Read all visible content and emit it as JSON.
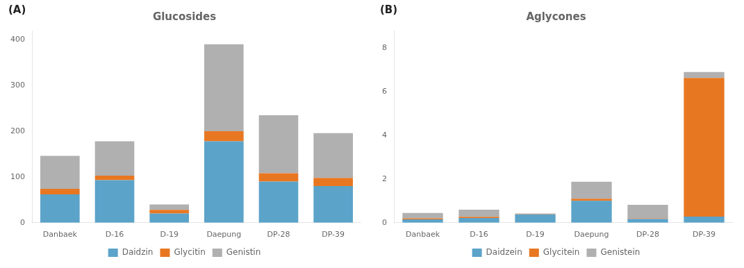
{
  "chart_data": [
    {
      "type": "bar",
      "title": "Glucosides",
      "annotations": [
        "(A)"
      ],
      "categories": [
        "Danbaek",
        "D-16",
        "D-19",
        "Daepung",
        "DP-28",
        "DP-39"
      ],
      "series": [
        {
          "name": "Daidzin",
          "color": "#5BA3C9",
          "values": [
            62,
            93,
            20,
            178,
            90,
            80
          ]
        },
        {
          "name": "Glycitin",
          "color": "#E87722",
          "values": [
            12,
            10,
            8,
            22,
            18,
            18
          ]
        },
        {
          "name": "Genistin",
          "color": "#B0B0B0",
          "values": [
            72,
            75,
            12,
            190,
            127,
            98
          ]
        }
      ],
      "ylim": [
        0,
        420
      ],
      "yticks": [
        0,
        100,
        200,
        300,
        400
      ],
      "stacked": true,
      "grid": false,
      "legend": "bottom"
    },
    {
      "type": "bar",
      "title": "Aglycones",
      "annotations": [
        "(B)"
      ],
      "categories": [
        "Danbaek",
        "D-16",
        "D-19",
        "Daepung",
        "DP-28",
        "DP-39"
      ],
      "series": [
        {
          "name": "Daidzein",
          "color": "#5BA3C9",
          "values": [
            0.15,
            0.22,
            0.38,
            1.0,
            0.18,
            0.28
          ]
        },
        {
          "name": "Glycitein",
          "color": "#E87722",
          "values": [
            0.05,
            0.05,
            0.02,
            0.1,
            0.02,
            6.35
          ]
        },
        {
          "name": "Genistein",
          "color": "#B0B0B0",
          "values": [
            0.25,
            0.33,
            0.02,
            0.78,
            0.62,
            0.27
          ]
        }
      ],
      "ylim": [
        0,
        8.8
      ],
      "yticks": [
        0,
        2,
        4,
        6,
        8
      ],
      "stacked": true,
      "grid": false,
      "legend": "bottom"
    }
  ]
}
